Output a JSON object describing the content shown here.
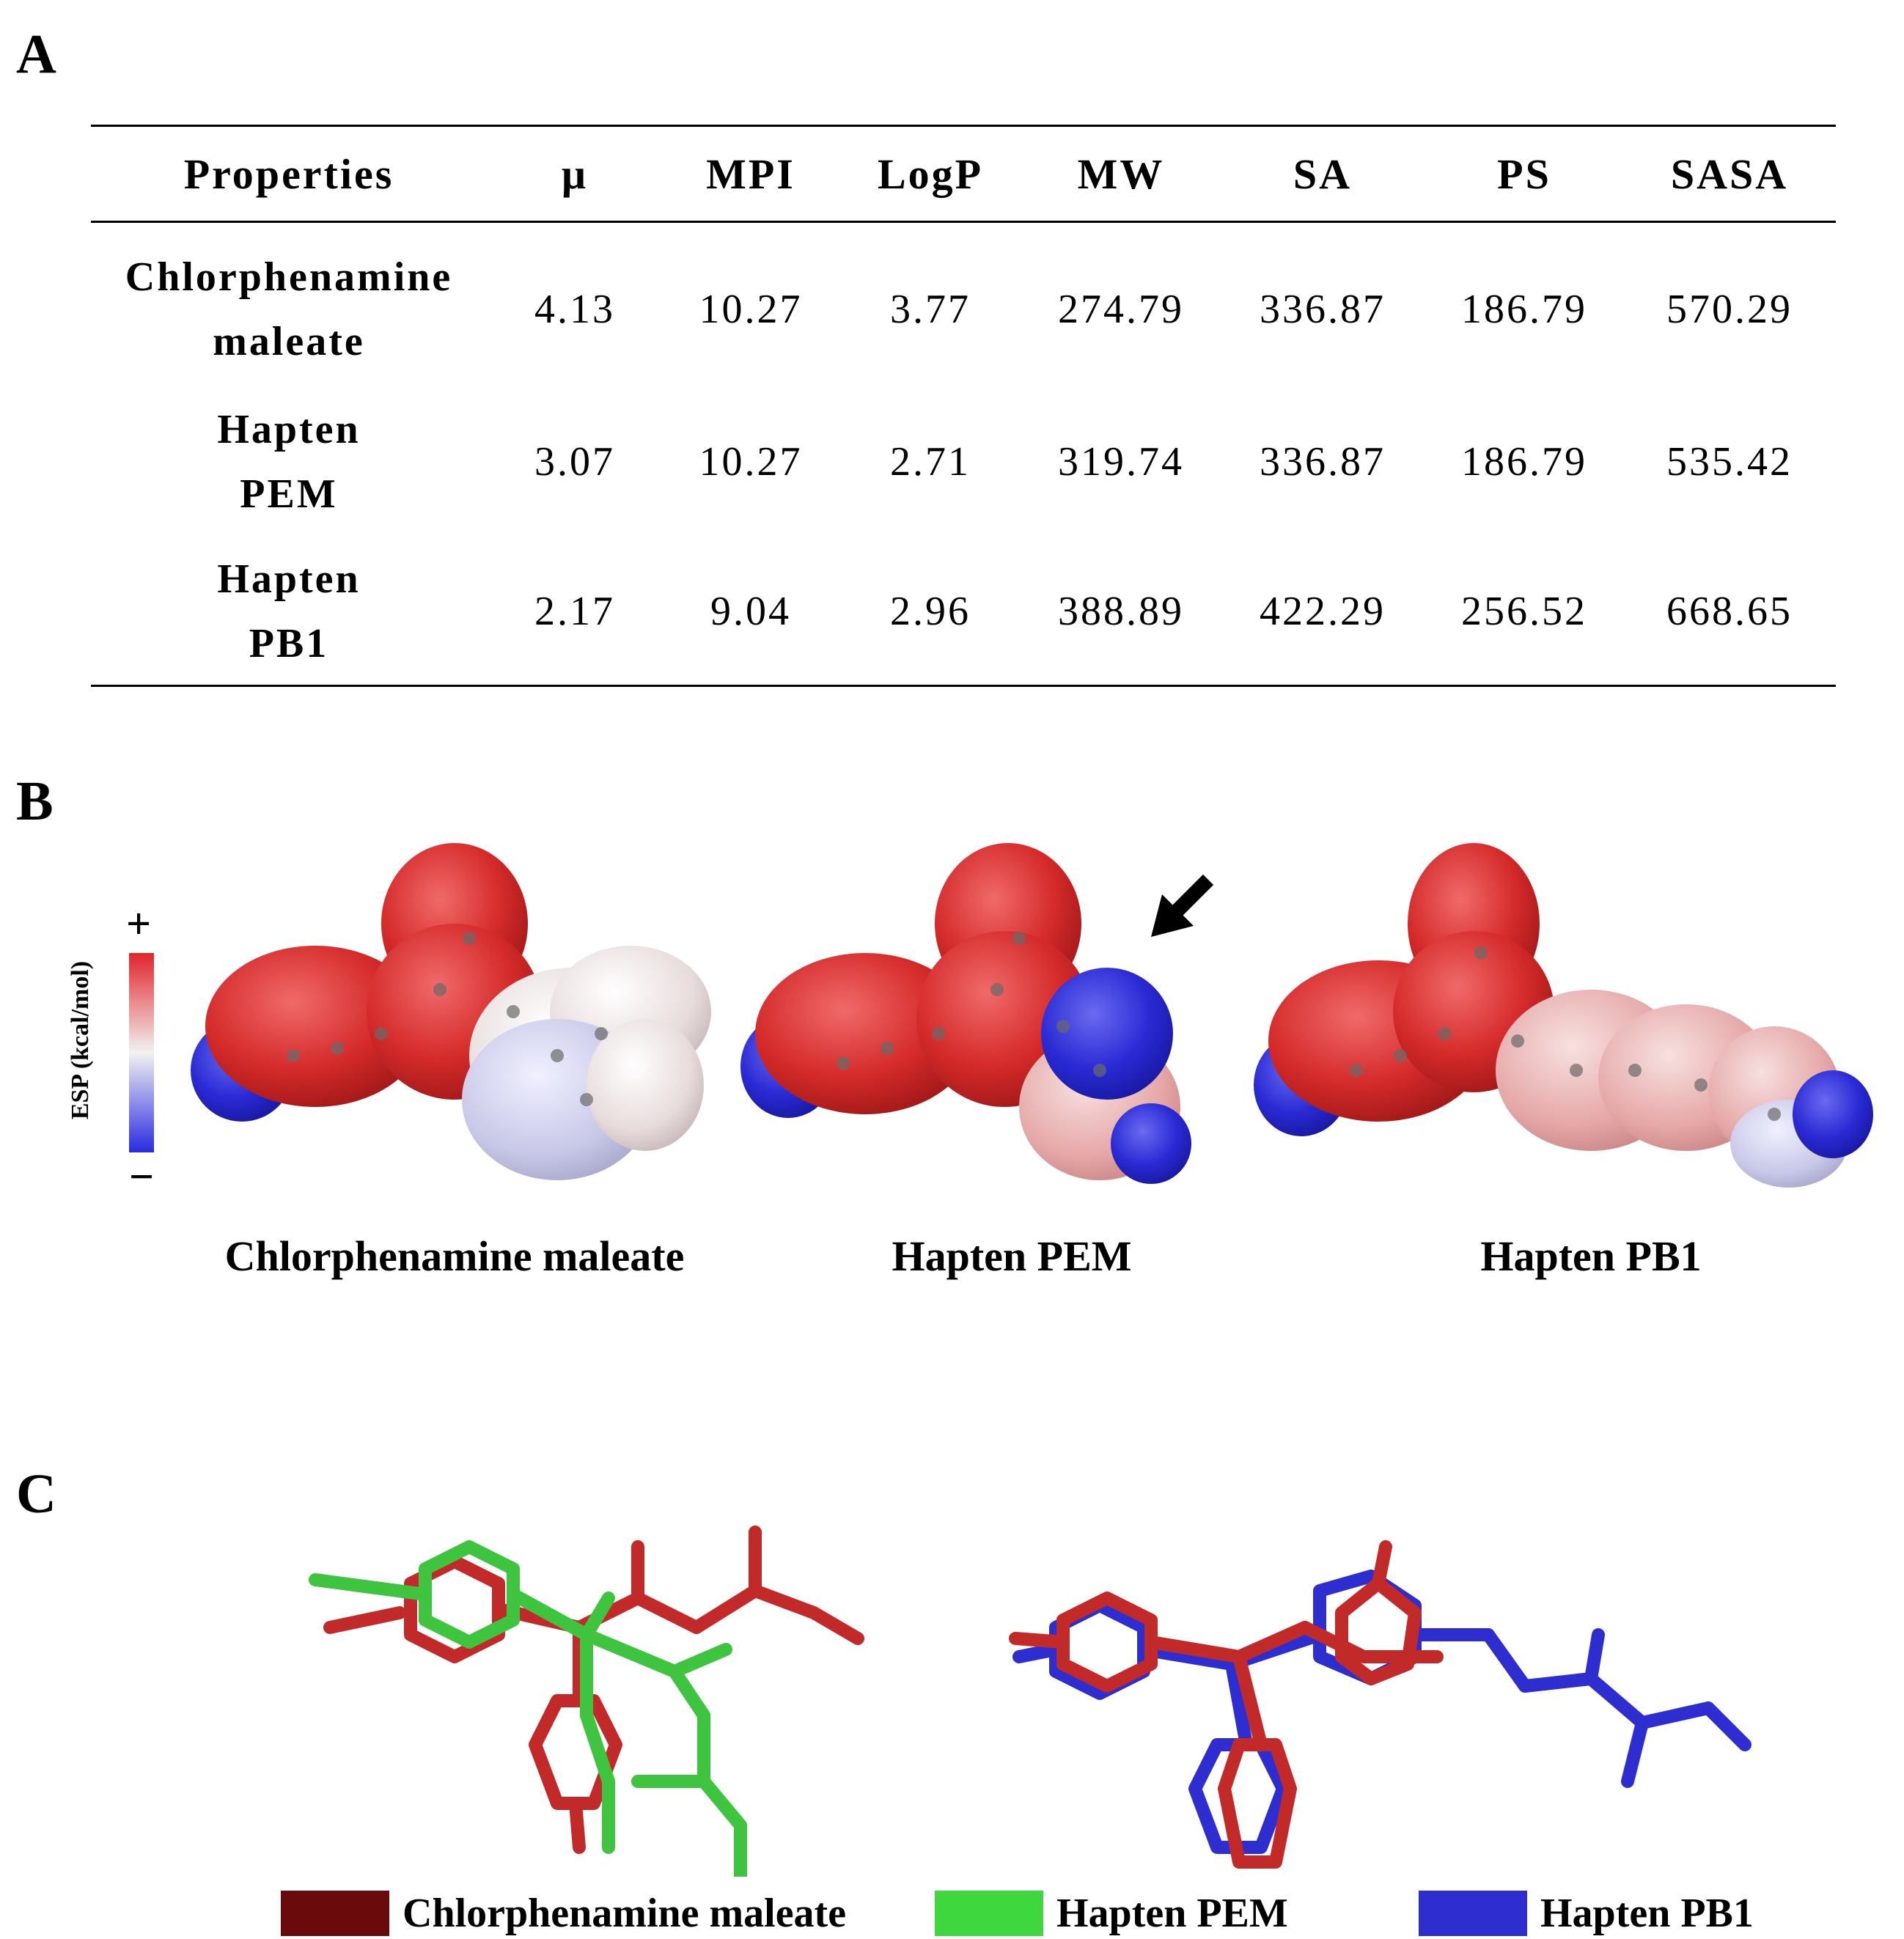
{
  "panels": {
    "a": "A",
    "b": "B",
    "c": "C"
  },
  "table": {
    "headers": [
      "Properties",
      "μ",
      "MPI",
      "LogP",
      "MW",
      "SA",
      "PS",
      "SASA"
    ],
    "rows": [
      {
        "name_line1": "Chlorphenamine",
        "name_line2": "maleate",
        "values": [
          "4.13",
          "10.27",
          "3.77",
          "274.79",
          "336.87",
          "186.79",
          "570.29"
        ]
      },
      {
        "name_line1": "Hapten",
        "name_line2": "PEM",
        "values": [
          "3.07",
          "10.27",
          "2.71",
          "319.74",
          "336.87",
          "186.79",
          "535.42"
        ]
      },
      {
        "name_line1": "Hapten",
        "name_line2": "PB1",
        "values": [
          "2.17",
          "9.04",
          "2.96",
          "388.89",
          "422.29",
          "256.52",
          "668.65"
        ]
      }
    ]
  },
  "esp": {
    "scale_title": "ESP (kcal/mol)",
    "plus": "+",
    "minus": "−",
    "gradient_colors": [
      "#e0242a",
      "#f2f2f2",
      "#2a2ae0"
    ],
    "captions": [
      "Chlorphenamine maleate",
      "Hapten PEM",
      "Hapten PB1"
    ]
  },
  "legend": [
    {
      "label": "Chlorphenamine maleate",
      "color": "#6b0a0a"
    },
    {
      "label": "Hapten PEM",
      "color": "#3ed83e"
    },
    {
      "label": "Hapten PB1",
      "color": "#2e2ed0"
    }
  ],
  "overlay_colors": {
    "chlorphenamine": "#c22a2a",
    "pem": "#3ec43e",
    "pb1": "#2e2ed0"
  }
}
